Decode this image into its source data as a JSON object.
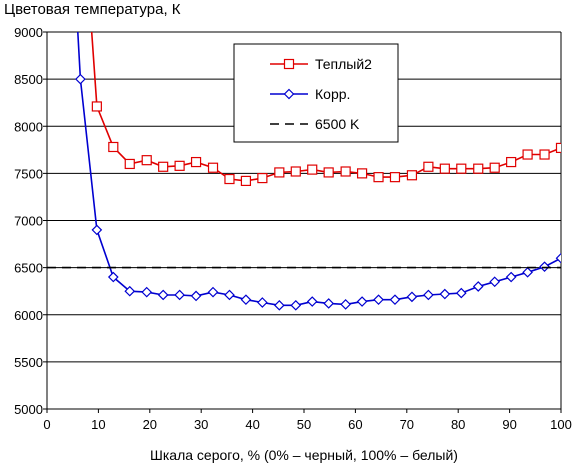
{
  "chart_data": {
    "type": "line",
    "title": "Цветовая температура, К",
    "xlabel": "Шкала серого, % (0% – черный, 100% – белый)",
    "ylabel": "",
    "xlim": [
      0,
      100
    ],
    "ylim": [
      5000,
      9000
    ],
    "x_ticks": [
      "0",
      "10",
      "20",
      "30",
      "40",
      "50",
      "60",
      "70",
      "80",
      "90",
      "100"
    ],
    "y_ticks": [
      "5000",
      "5500",
      "6000",
      "6500",
      "7000",
      "7500",
      "8000",
      "8500",
      "9000"
    ],
    "grid": "horizontal",
    "legend_position": "top-right",
    "series": [
      {
        "name": "Теплый2",
        "color": "#e00000",
        "marker": "square",
        "x": [
          8.7,
          9.7,
          12.9,
          16.1,
          19.4,
          22.6,
          25.8,
          29.0,
          32.3,
          35.5,
          38.7,
          41.9,
          45.2,
          48.4,
          51.6,
          54.8,
          58.1,
          61.3,
          64.5,
          67.7,
          71.0,
          74.2,
          77.4,
          80.6,
          83.9,
          87.1,
          90.3,
          93.5,
          96.8,
          100
        ],
        "y": [
          9000,
          8210,
          7780,
          7600,
          7640,
          7570,
          7580,
          7620,
          7560,
          7440,
          7420,
          7450,
          7510,
          7520,
          7540,
          7510,
          7520,
          7500,
          7460,
          7460,
          7480,
          7570,
          7550,
          7550,
          7550,
          7560,
          7620,
          7700,
          7700,
          7770
        ]
      },
      {
        "name": "Корр.",
        "color": "#0000d0",
        "marker": "diamond",
        "x": [
          6.0,
          6.5,
          9.7,
          12.9,
          16.1,
          19.4,
          22.6,
          25.8,
          29.0,
          32.3,
          35.5,
          38.7,
          41.9,
          45.2,
          48.4,
          51.6,
          54.8,
          58.1,
          61.3,
          64.5,
          67.7,
          71.0,
          74.2,
          77.4,
          80.6,
          83.9,
          87.1,
          90.3,
          93.5,
          96.8,
          100
        ],
        "y": [
          9000,
          8500,
          6900,
          6400,
          6250,
          6240,
          6210,
          6210,
          6200,
          6240,
          6210,
          6160,
          6130,
          6100,
          6100,
          6140,
          6120,
          6110,
          6140,
          6160,
          6160,
          6190,
          6210,
          6220,
          6230,
          6300,
          6350,
          6400,
          6450,
          6510,
          6600
        ]
      },
      {
        "name": "6500 K",
        "color": "#000000",
        "marker": "none",
        "dashed": true,
        "x": [
          0,
          100
        ],
        "y": [
          6500,
          6500
        ]
      }
    ]
  }
}
